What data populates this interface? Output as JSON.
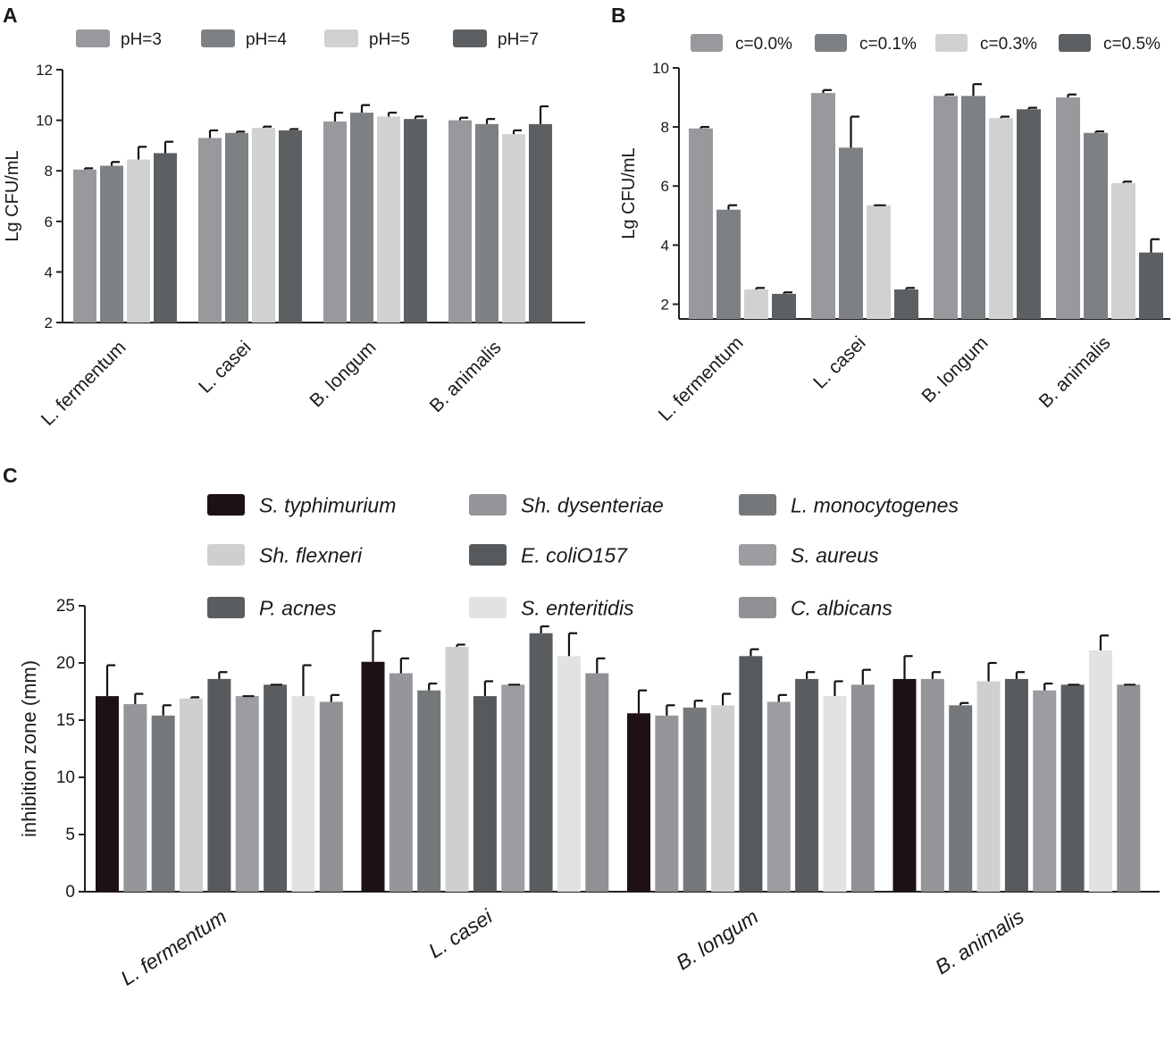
{
  "chart_data": [
    {
      "panel_label": "A",
      "type": "bar",
      "ylabel": "Lg  CFU/mL",
      "xlabel": "",
      "ylim": [
        2,
        12
      ],
      "yticks": [
        2,
        4,
        6,
        8,
        10,
        12
      ],
      "legend_position": "top",
      "categories": [
        "L. fermentum",
        "L. casei",
        "B. longum",
        "B. animalis"
      ],
      "series": [
        {
          "name": "pH=3",
          "color": "#97999c",
          "values": [
            8.05,
            9.3,
            9.95,
            10.0
          ],
          "errors": [
            0.05,
            0.3,
            0.35,
            0.1
          ]
        },
        {
          "name": "pH=4",
          "color": "#7d8184",
          "values": [
            8.2,
            9.5,
            10.3,
            9.85
          ],
          "errors": [
            0.15,
            0.05,
            0.3,
            0.2
          ]
        },
        {
          "name": "pH=5",
          "color": "#d0d2d2",
          "values": [
            8.45,
            9.7,
            10.15,
            9.45
          ],
          "errors": [
            0.5,
            0.05,
            0.15,
            0.15
          ]
        },
        {
          "name": "pH=7",
          "color": "#5c6063",
          "values": [
            8.7,
            9.6,
            10.05,
            9.85
          ],
          "errors": [
            0.45,
            0.05,
            0.1,
            0.7
          ]
        }
      ]
    },
    {
      "panel_label": "B",
      "type": "bar",
      "ylabel": "Lg  CFU/mL",
      "xlabel": "",
      "ylim": [
        1.5,
        10
      ],
      "yticks": [
        2,
        4,
        6,
        8,
        10
      ],
      "legend_position": "top",
      "categories": [
        "L. fermentum",
        "L. casei",
        "B. longum",
        "B. animalis"
      ],
      "series": [
        {
          "name": "c=0.0%",
          "color": "#97999c",
          "values": [
            7.95,
            9.15,
            9.05,
            9.0
          ],
          "errors": [
            0.05,
            0.1,
            0.05,
            0.1
          ]
        },
        {
          "name": "c=0.1%",
          "color": "#7d8184",
          "values": [
            5.2,
            7.3,
            9.05,
            7.8
          ],
          "errors": [
            0.15,
            1.05,
            0.4,
            0.05
          ]
        },
        {
          "name": "c=0.3%",
          "color": "#d0d2d2",
          "values": [
            2.5,
            5.35,
            8.3,
            6.1
          ],
          "errors": [
            0.05,
            0.0,
            0.05,
            0.05
          ]
        },
        {
          "name": "c=0.5%",
          "color": "#5c6063",
          "values": [
            2.35,
            2.5,
            8.6,
            3.75
          ],
          "errors": [
            0.05,
            0.05,
            0.05,
            0.45
          ]
        }
      ]
    },
    {
      "panel_label": "C",
      "type": "bar",
      "ylabel": "inhibition zone (mm)",
      "xlabel": "",
      "ylim": [
        0,
        25
      ],
      "yticks": [
        0,
        5,
        10,
        15,
        20,
        25
      ],
      "legend_position": "top",
      "categories": [
        "L. fermentum",
        "L. casei",
        "B. longum",
        "B. animalis"
      ],
      "series": [
        {
          "name": "S. typhimurium",
          "color": "#1e1114",
          "values": [
            17.1,
            20.1,
            15.6,
            18.6
          ],
          "errors": [
            2.7,
            2.7,
            2.0,
            2.0
          ]
        },
        {
          "name": "Sh. dysenteriae",
          "color": "#94969a",
          "values": [
            16.4,
            19.1,
            15.4,
            18.6
          ],
          "errors": [
            0.9,
            1.3,
            0.9,
            0.6
          ]
        },
        {
          "name": "L. monocytogenes",
          "color": "#74787b",
          "values": [
            15.4,
            17.6,
            16.1,
            16.3
          ],
          "errors": [
            0.9,
            0.6,
            0.6,
            0.2
          ]
        },
        {
          "name": "Sh. flexneri",
          "color": "#ced0d0",
          "values": [
            16.9,
            21.4,
            16.3,
            18.4
          ],
          "errors": [
            0.1,
            0.2,
            1.0,
            1.6
          ]
        },
        {
          "name": "E. coliO157",
          "color": "#575a5d",
          "values": [
            18.6,
            17.1,
            20.6,
            18.6
          ],
          "errors": [
            0.6,
            1.3,
            0.6,
            0.6
          ]
        },
        {
          "name": "S. aureus",
          "color": "#9b9da0",
          "values": [
            17.1,
            18.1,
            16.6,
            17.6
          ],
          "errors": [
            0.0,
            0.0,
            0.6,
            0.6
          ]
        },
        {
          "name": "P. acnes",
          "color": "#5b5e61",
          "values": [
            18.1,
            22.6,
            18.6,
            18.1
          ],
          "errors": [
            0.0,
            0.6,
            0.6,
            0.0
          ]
        },
        {
          "name": "S. enteritidis",
          "color": "#e1e2e2",
          "values": [
            17.1,
            20.6,
            17.1,
            21.1
          ],
          "errors": [
            2.7,
            2.0,
            1.3,
            1.3
          ]
        },
        {
          "name": "C. albicans",
          "color": "#8f9194",
          "values": [
            16.6,
            19.1,
            18.1,
            18.1
          ],
          "errors": [
            0.6,
            1.3,
            1.3,
            0.0
          ]
        }
      ]
    }
  ]
}
